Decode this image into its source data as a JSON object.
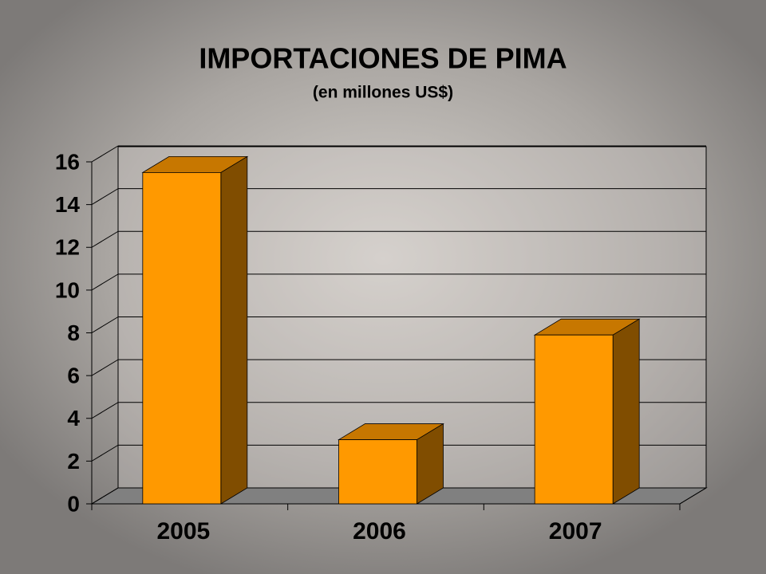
{
  "chart_data": {
    "type": "bar3d",
    "title": "IMPORTACIONES DE PIMA",
    "subtitle": "(en millones US$)",
    "categories": [
      "2005",
      "2006",
      "2007"
    ],
    "values": [
      15.5,
      3.0,
      7.9
    ],
    "color": "#ff9900",
    "ylim": [
      0,
      16
    ],
    "yticks": [
      0,
      2,
      4,
      6,
      8,
      10,
      12,
      14,
      16
    ],
    "grid": true
  }
}
